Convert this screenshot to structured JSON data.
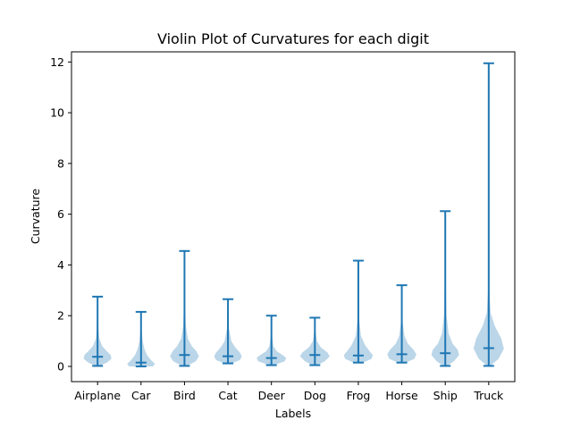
{
  "chart_data": {
    "type": "violin",
    "title": "Violin Plot of Curvatures for each digit",
    "xlabel": "Labels",
    "ylabel": "Curvature",
    "ylim": [
      -0.6,
      12.4
    ],
    "yticks": [
      0,
      2,
      4,
      6,
      8,
      10,
      12
    ],
    "grid": false,
    "legend": "none",
    "colors": {
      "stroke": "#1f77b4",
      "fill": "#1f77b4"
    },
    "categories": [
      "Airplane",
      "Car",
      "Bird",
      "Cat",
      "Deer",
      "Dog",
      "Frog",
      "Horse",
      "Ship",
      "Truck"
    ],
    "series": [
      {
        "min": 0.02,
        "median": 0.38,
        "max": 2.75,
        "density": [
          [
            0.02,
            0.06
          ],
          [
            0.15,
            0.28
          ],
          [
            0.3,
            0.42
          ],
          [
            0.45,
            0.4
          ],
          [
            0.6,
            0.28
          ],
          [
            0.8,
            0.14
          ],
          [
            1.1,
            0.05
          ],
          [
            1.6,
            0.02
          ],
          [
            2.75,
            0.005
          ]
        ]
      },
      {
        "min": 0.0,
        "median": 0.15,
        "max": 2.15,
        "density": [
          [
            0.0,
            0.36
          ],
          [
            0.1,
            0.42
          ],
          [
            0.25,
            0.3
          ],
          [
            0.45,
            0.18
          ],
          [
            0.7,
            0.1
          ],
          [
            1.0,
            0.05
          ],
          [
            1.4,
            0.02
          ],
          [
            2.15,
            0.005
          ]
        ]
      },
      {
        "min": 0.02,
        "median": 0.45,
        "max": 4.55,
        "density": [
          [
            0.02,
            0.08
          ],
          [
            0.2,
            0.34
          ],
          [
            0.4,
            0.44
          ],
          [
            0.6,
            0.36
          ],
          [
            0.8,
            0.22
          ],
          [
            1.1,
            0.1
          ],
          [
            1.6,
            0.04
          ],
          [
            2.5,
            0.015
          ],
          [
            4.55,
            0.004
          ]
        ]
      },
      {
        "min": 0.12,
        "median": 0.4,
        "max": 2.65,
        "density": [
          [
            0.12,
            0.12
          ],
          [
            0.25,
            0.36
          ],
          [
            0.4,
            0.42
          ],
          [
            0.55,
            0.36
          ],
          [
            0.75,
            0.22
          ],
          [
            1.0,
            0.1
          ],
          [
            1.5,
            0.03
          ],
          [
            2.65,
            0.005
          ]
        ]
      },
      {
        "min": 0.05,
        "median": 0.33,
        "max": 2.0,
        "density": [
          [
            0.05,
            0.08
          ],
          [
            0.2,
            0.4
          ],
          [
            0.33,
            0.45
          ],
          [
            0.45,
            0.34
          ],
          [
            0.6,
            0.16
          ],
          [
            0.8,
            0.06
          ],
          [
            1.2,
            0.02
          ],
          [
            2.0,
            0.004
          ]
        ]
      },
      {
        "min": 0.05,
        "median": 0.45,
        "max": 1.92,
        "density": [
          [
            0.05,
            0.08
          ],
          [
            0.2,
            0.3
          ],
          [
            0.4,
            0.45
          ],
          [
            0.55,
            0.38
          ],
          [
            0.75,
            0.18
          ],
          [
            1.0,
            0.06
          ],
          [
            1.4,
            0.02
          ],
          [
            1.92,
            0.004
          ]
        ]
      },
      {
        "min": 0.15,
        "median": 0.43,
        "max": 4.17,
        "density": [
          [
            0.15,
            0.14
          ],
          [
            0.3,
            0.4
          ],
          [
            0.45,
            0.44
          ],
          [
            0.6,
            0.34
          ],
          [
            0.85,
            0.2
          ],
          [
            1.2,
            0.08
          ],
          [
            1.8,
            0.03
          ],
          [
            2.8,
            0.01
          ],
          [
            4.17,
            0.003
          ]
        ]
      },
      {
        "min": 0.15,
        "median": 0.48,
        "max": 3.2,
        "density": [
          [
            0.15,
            0.12
          ],
          [
            0.3,
            0.38
          ],
          [
            0.48,
            0.44
          ],
          [
            0.65,
            0.36
          ],
          [
            0.9,
            0.18
          ],
          [
            1.2,
            0.08
          ],
          [
            1.8,
            0.02
          ],
          [
            3.2,
            0.004
          ]
        ]
      },
      {
        "min": 0.02,
        "median": 0.52,
        "max": 6.12,
        "density": [
          [
            0.02,
            0.06
          ],
          [
            0.2,
            0.26
          ],
          [
            0.45,
            0.42
          ],
          [
            0.65,
            0.38
          ],
          [
            0.9,
            0.22
          ],
          [
            1.3,
            0.1
          ],
          [
            2.0,
            0.04
          ],
          [
            3.5,
            0.012
          ],
          [
            6.12,
            0.003
          ]
        ]
      },
      {
        "min": 0.02,
        "median": 0.72,
        "max": 11.95,
        "density": [
          [
            0.02,
            0.05
          ],
          [
            0.3,
            0.3
          ],
          [
            0.7,
            0.46
          ],
          [
            1.1,
            0.38
          ],
          [
            1.6,
            0.18
          ],
          [
            2.1,
            0.06
          ],
          [
            3.0,
            0.02
          ],
          [
            6.0,
            0.006
          ],
          [
            11.95,
            0.002
          ]
        ]
      }
    ]
  }
}
